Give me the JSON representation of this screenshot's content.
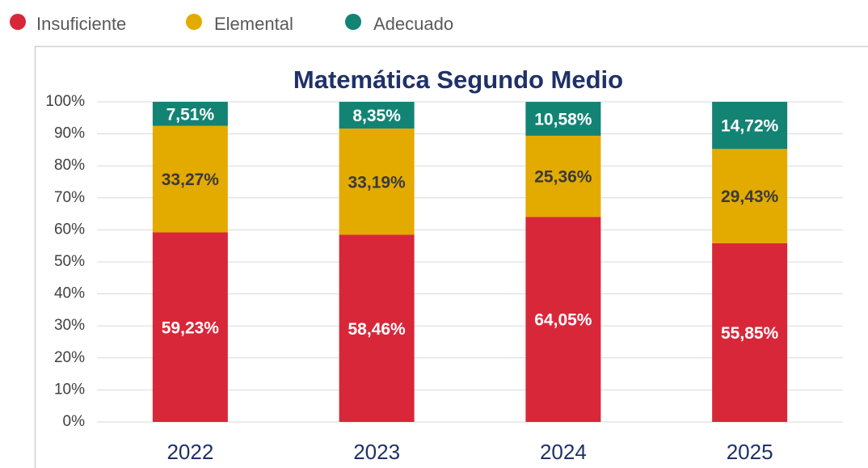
{
  "chart_data": {
    "type": "stacked_bar",
    "title": "Matemática Segundo Medio",
    "categories": [
      "2022",
      "2023",
      "2024",
      "2025"
    ],
    "series": [
      {
        "name": "Insuficiente",
        "color": "#d9273a",
        "values": [
          59.23,
          58.46,
          64.05,
          55.85
        ],
        "value_labels": [
          "59,23%",
          "58,46%",
          "64,05%",
          "55,85%"
        ],
        "label_color": "#ffffff"
      },
      {
        "name": "Elemental",
        "color": "#e3aa00",
        "values": [
          33.27,
          33.19,
          25.36,
          29.43
        ],
        "value_labels": [
          "33,27%",
          "33,19%",
          "25,36%",
          "29,43%"
        ],
        "label_color": "#3a3a3a"
      },
      {
        "name": "Adecuado",
        "color": "#138374",
        "values": [
          7.51,
          8.35,
          10.58,
          14.72
        ],
        "value_labels": [
          "7,51%",
          "8,35%",
          "10,58%",
          "14,72%"
        ],
        "label_color": "#ffffff"
      }
    ],
    "ylim": [
      0,
      100
    ],
    "yticks": [
      {
        "value": 0,
        "label": "0%"
      },
      {
        "value": 10,
        "label": "10%"
      },
      {
        "value": 20,
        "label": "20%"
      },
      {
        "value": 30,
        "label": "30%"
      },
      {
        "value": 40,
        "label": "40%"
      },
      {
        "value": 50,
        "label": "50%"
      },
      {
        "value": 60,
        "label": "60%"
      },
      {
        "value": 70,
        "label": "70%"
      },
      {
        "value": 80,
        "label": "80%"
      },
      {
        "value": 90,
        "label": "90%"
      },
      {
        "value": 100,
        "label": "100%"
      }
    ],
    "grid": true,
    "legend": "top-left"
  }
}
